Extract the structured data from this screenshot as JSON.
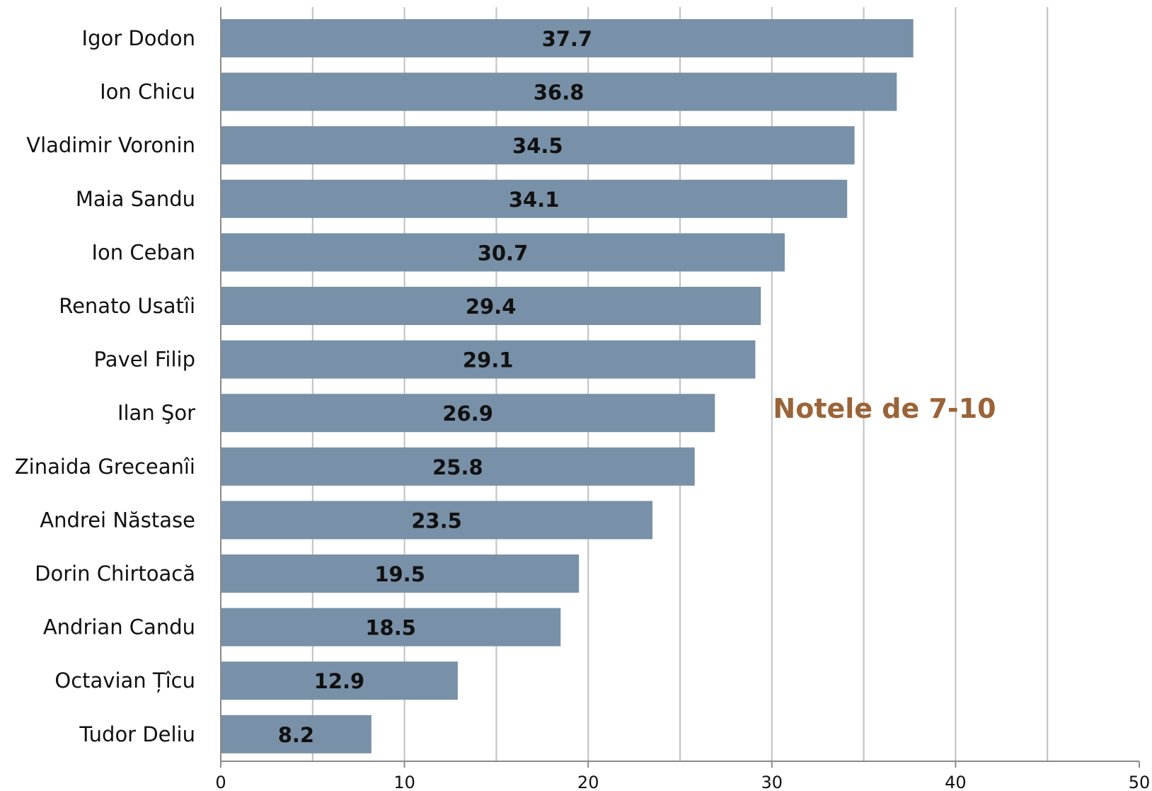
{
  "chart_data": {
    "type": "bar",
    "orientation": "horizontal",
    "categories": [
      "Igor Dodon",
      "Ion Chicu",
      "Vladimir Voronin",
      "Maia Sandu",
      "Ion Ceban",
      "Renato Usatîi",
      "Pavel Filip",
      "Ilan Şor",
      "Zinaida Greceanîi",
      "Andrei Năstase",
      "Dorin Chirtoacă",
      "Andrian Candu",
      "Octavian Țîcu",
      "Tudor Deliu"
    ],
    "values": [
      37.7,
      36.8,
      34.5,
      34.1,
      30.7,
      29.4,
      29.1,
      26.9,
      25.8,
      23.5,
      19.5,
      18.5,
      12.9,
      8.2
    ],
    "value_labels": [
      "37.7",
      "36.8",
      "34.5",
      "34.1",
      "30.7",
      "29.4",
      "29.1",
      "26.9",
      "25.8",
      "23.5",
      "19.5",
      "18.5",
      "12.9",
      "8.2"
    ],
    "xlim": [
      0,
      50
    ],
    "xticks": [
      0,
      10,
      20,
      30,
      40,
      50
    ],
    "xtick_labels": [
      "0",
      "10",
      "20",
      "30",
      "40",
      "50"
    ],
    "gridlines": [
      5,
      10,
      15,
      20,
      25,
      30,
      35,
      40,
      45
    ],
    "grid": true,
    "annotation": "Notele de 7-10",
    "title": "",
    "xlabel": "",
    "ylabel": "",
    "colors": {
      "bar": "#7891a8",
      "grid": "#c0c0c0",
      "axis": "#8a8a8a",
      "annotation": "#9b6438"
    }
  }
}
